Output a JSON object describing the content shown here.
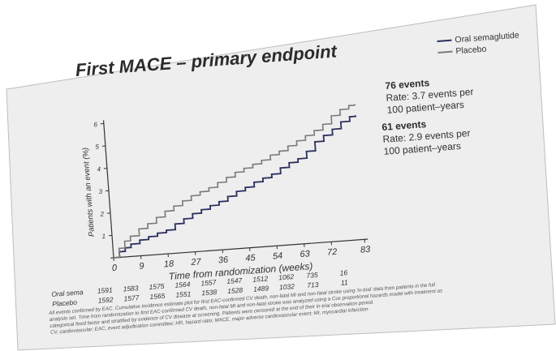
{
  "chart_data": {
    "type": "line",
    "title": "First MACE – primary endpoint",
    "xlabel": "Time from randomization (weeks)",
    "ylabel": "Patients with an event (%)",
    "xlim": [
      0,
      83
    ],
    "ylim": [
      0,
      6
    ],
    "xticks": [
      0,
      9,
      18,
      27,
      36,
      45,
      54,
      63,
      72,
      83
    ],
    "yticks": [
      0,
      1,
      2,
      3,
      4,
      5,
      6
    ],
    "grid": false,
    "legend_position": "top-right",
    "series": [
      {
        "name": "Oral semaglutide",
        "color": "#2a2f5e",
        "x": [
          0,
          2,
          4,
          6,
          9,
          12,
          15,
          18,
          21,
          24,
          27,
          30,
          33,
          36,
          39,
          42,
          45,
          48,
          51,
          54,
          57,
          60,
          63,
          66,
          69,
          72,
          75,
          78,
          81,
          83
        ],
        "y": [
          0,
          0.25,
          0.4,
          0.55,
          0.7,
          0.82,
          0.95,
          1.05,
          1.3,
          1.5,
          1.7,
          1.85,
          2.0,
          2.15,
          2.35,
          2.55,
          2.7,
          2.9,
          3.05,
          3.2,
          3.45,
          3.65,
          3.8,
          4.1,
          4.5,
          4.75,
          5.0,
          5.3,
          5.5,
          5.55
        ]
      },
      {
        "name": "Placebo",
        "color": "#7a7a7a",
        "x": [
          0,
          2,
          4,
          6,
          9,
          12,
          15,
          18,
          21,
          24,
          27,
          30,
          33,
          36,
          39,
          42,
          45,
          48,
          51,
          54,
          57,
          60,
          63,
          66,
          69,
          72,
          75,
          78,
          81,
          83
        ],
        "y": [
          0,
          0.4,
          0.7,
          0.9,
          1.2,
          1.4,
          1.65,
          1.9,
          2.1,
          2.3,
          2.5,
          2.65,
          2.8,
          3.0,
          3.2,
          3.4,
          3.55,
          3.7,
          3.85,
          4.05,
          4.2,
          4.4,
          4.6,
          4.8,
          5.0,
          5.25,
          5.6,
          5.85,
          6.0,
          6.05
        ]
      }
    ]
  },
  "annotations": {
    "placebo": {
      "count": "76 events",
      "rate_line1": "Rate: 3.7 events per",
      "rate_line2": "100 patient–years"
    },
    "sema": {
      "count": "61 events",
      "rate_line1": "Rate: 2.9 events per",
      "rate_line2": "100 patient–years"
    }
  },
  "risk_table": {
    "rows": [
      {
        "label": "Oral sema",
        "values": [
          "1591",
          "1583",
          "1575",
          "1564",
          "1557",
          "1547",
          "1512",
          "1062",
          "735",
          "16"
        ]
      },
      {
        "label": "Placebo",
        "values": [
          "1592",
          "1577",
          "1565",
          "1551",
          "1538",
          "1528",
          "1489",
          "1032",
          "713",
          "11"
        ]
      }
    ]
  },
  "footnote": {
    "line1": "All events confirmed by EAC. Cumulative incidence estimate plot for first EAC-confirmed CV death, non-fatal MI and non-fatal stroke using 'in-trial' data from patients in the full",
    "line2": "analysis set. Time from randomization to first EAC-confirmed CV death, non-fatal MI and non-fatal stroke was analyzed using a Cox proportional hazards model with treatment as",
    "line3": "categorical fixed factor and stratified by evidence of CV disease at screening. Patients were censored at the end of their in-trial observation period.",
    "line4": "CV, cardiovascular; EAC, event adjudication committee; HR, hazard ratio; MACE, major adverse cardiovascular event; MI, myocardial infarction"
  }
}
